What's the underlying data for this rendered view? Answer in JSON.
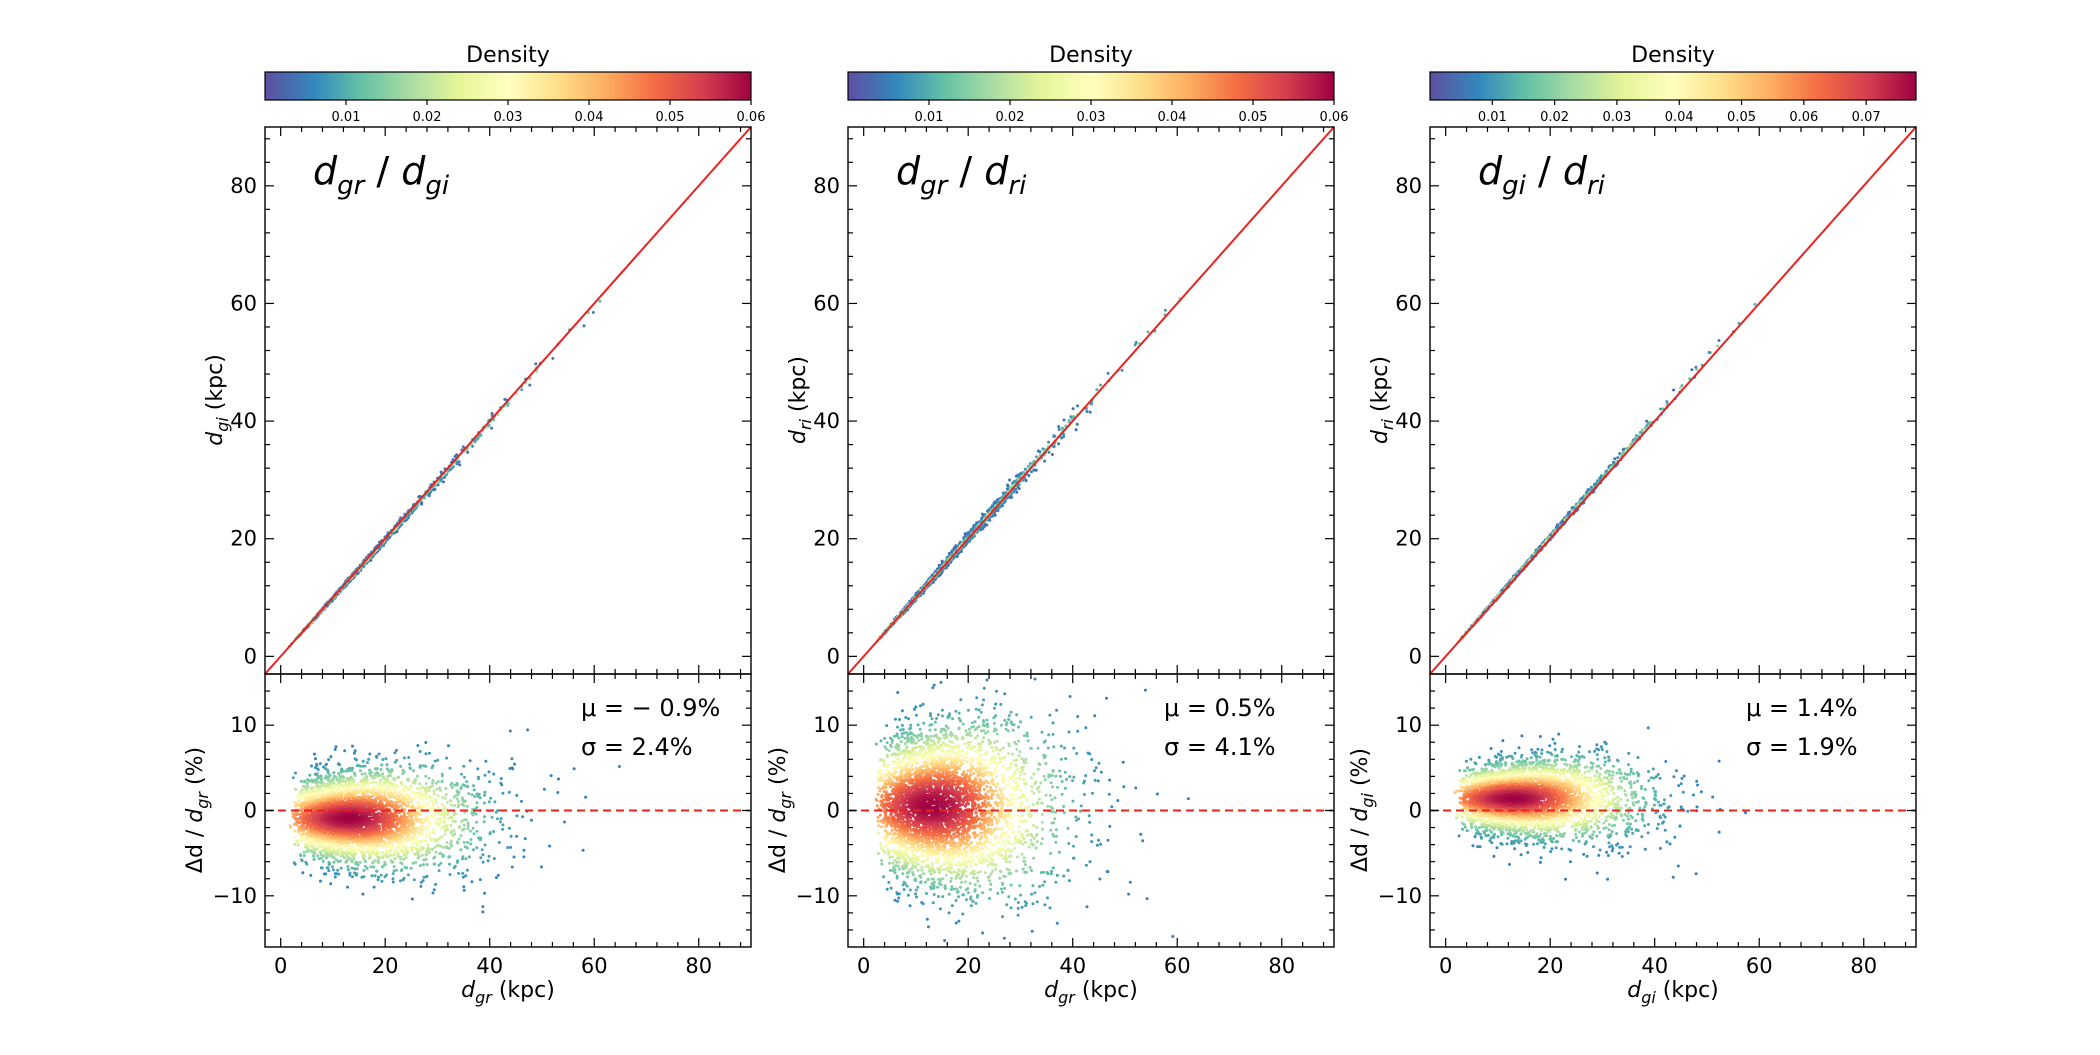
{
  "chart_data": [
    {
      "type": "scatter",
      "panel": "top",
      "title_main": "d",
      "title_sub1": "gr",
      "title_sep": " / ",
      "title_main2": "d",
      "title_sub2": "gi",
      "xlabel_main": "d",
      "xlabel_sub": "gr",
      "xlabel_unit": " (kpc)",
      "ylabel_main": "d",
      "ylabel_sub": "gi",
      "ylabel_unit": " (kpc)",
      "xlim": [
        -3,
        90
      ],
      "ylim": [
        -3,
        90
      ],
      "yticks": [
        0,
        20,
        40,
        60,
        80
      ],
      "ytick_labels": [
        "0",
        "20",
        "40",
        "60",
        "80"
      ],
      "reference_line": "y = x",
      "point_count": 1800,
      "offset_percent": -0.9,
      "scatter_percent": 2.4,
      "colorbar": {
        "title": "Density",
        "range": [
          0.0,
          0.06
        ],
        "ticks": [
          0.01,
          0.02,
          0.03,
          0.04,
          0.05,
          0.06
        ],
        "tick_labels": [
          "0.01",
          "0.02",
          "0.03",
          "0.04",
          "0.05",
          "0.06"
        ]
      }
    },
    {
      "type": "scatter",
      "panel": "top",
      "title_main": "d",
      "title_sub1": "gr",
      "title_sep": " / ",
      "title_main2": "d",
      "title_sub2": "ri",
      "xlabel_main": "d",
      "xlabel_sub": "gr",
      "xlabel_unit": " (kpc)",
      "ylabel_main": "d",
      "ylabel_sub": "ri",
      "ylabel_unit": " (kpc)",
      "xlim": [
        -3,
        90
      ],
      "ylim": [
        -3,
        90
      ],
      "yticks": [
        0,
        20,
        40,
        60,
        80
      ],
      "ytick_labels": [
        "0",
        "20",
        "40",
        "60",
        "80"
      ],
      "reference_line": "y = x",
      "point_count": 1800,
      "offset_percent": 0.5,
      "scatter_percent": 4.1,
      "colorbar": {
        "title": "Density",
        "range": [
          0.0,
          0.06
        ],
        "ticks": [
          0.01,
          0.02,
          0.03,
          0.04,
          0.05,
          0.06
        ],
        "tick_labels": [
          "0.01",
          "0.02",
          "0.03",
          "0.04",
          "0.05",
          "0.06"
        ]
      }
    },
    {
      "type": "scatter",
      "panel": "top",
      "title_main": "d",
      "title_sub1": "gi",
      "title_sep": " / ",
      "title_main2": "d",
      "title_sub2": "ri",
      "xlabel_main": "d",
      "xlabel_sub": "gi",
      "xlabel_unit": " (kpc)",
      "ylabel_main": "d",
      "ylabel_sub": "ri",
      "ylabel_unit": " (kpc)",
      "xlim": [
        -3,
        90
      ],
      "ylim": [
        -3,
        90
      ],
      "yticks": [
        0,
        20,
        40,
        60,
        80
      ],
      "ytick_labels": [
        "0",
        "20",
        "40",
        "60",
        "80"
      ],
      "reference_line": "y = x",
      "point_count": 1800,
      "offset_percent": 1.4,
      "scatter_percent": 1.9,
      "colorbar": {
        "title": "Density",
        "range": [
          0.0,
          0.078
        ],
        "ticks": [
          0.01,
          0.02,
          0.03,
          0.04,
          0.05,
          0.06,
          0.07
        ],
        "tick_labels": [
          "0.01",
          "0.02",
          "0.03",
          "0.04",
          "0.05",
          "0.06",
          "0.07"
        ]
      }
    },
    {
      "type": "scatter",
      "panel": "bottom",
      "ylabel_prefix": "Δd / ",
      "ylabel_main": "d",
      "ylabel_sub": "gr",
      "ylabel_unit": " (%)",
      "xlabel_main": "d",
      "xlabel_sub": "gr",
      "xlabel_unit": " (kpc)",
      "xlim": [
        -3,
        90
      ],
      "ylim": [
        -16,
        16
      ],
      "xticks": [
        0,
        20,
        40,
        60,
        80
      ],
      "xtick_labels": [
        "0",
        "20",
        "40",
        "60",
        "80"
      ],
      "yticks": [
        -10,
        0,
        10
      ],
      "ytick_labels": [
        "−10",
        "0",
        "10"
      ],
      "reference_line": "y = 0",
      "point_count": 4200,
      "mu_label": "μ = − 0.9%",
      "sigma_label": "σ = 2.4%",
      "mean_percent": -0.9,
      "std_percent": 2.4
    },
    {
      "type": "scatter",
      "panel": "bottom",
      "ylabel_prefix": "Δd / ",
      "ylabel_main": "d",
      "ylabel_sub": "gr",
      "ylabel_unit": " (%)",
      "xlabel_main": "d",
      "xlabel_sub": "gr",
      "xlabel_unit": " (kpc)",
      "xlim": [
        -3,
        90
      ],
      "ylim": [
        -16,
        16
      ],
      "xticks": [
        0,
        20,
        40,
        60,
        80
      ],
      "xtick_labels": [
        "0",
        "20",
        "40",
        "60",
        "80"
      ],
      "yticks": [
        -10,
        0,
        10
      ],
      "ytick_labels": [
        "−10",
        "0",
        "10"
      ],
      "reference_line": "y = 0",
      "point_count": 4200,
      "mu_label": "μ = 0.5%",
      "sigma_label": "σ = 4.1%",
      "mean_percent": 0.5,
      "std_percent": 4.1
    },
    {
      "type": "scatter",
      "panel": "bottom",
      "ylabel_prefix": "Δd / ",
      "ylabel_main": "d",
      "ylabel_sub": "gi",
      "ylabel_unit": " (%)",
      "xlabel_main": "d",
      "xlabel_sub": "gi",
      "xlabel_unit": " (kpc)",
      "xlim": [
        -3,
        90
      ],
      "ylim": [
        -16,
        16
      ],
      "xticks": [
        0,
        20,
        40,
        60,
        80
      ],
      "xtick_labels": [
        "0",
        "20",
        "40",
        "60",
        "80"
      ],
      "yticks": [
        -10,
        0,
        10
      ],
      "ytick_labels": [
        "−10",
        "0",
        "10"
      ],
      "reference_line": "y = 0",
      "point_count": 4200,
      "mu_label": "μ = 1.4%",
      "sigma_label": "σ = 1.9%",
      "mean_percent": 1.4,
      "std_percent": 1.9
    }
  ],
  "colors": {
    "reference_line": "#e8231f",
    "spectral_r": [
      "#5e4fa2",
      "#3288bd",
      "#66c2a5",
      "#abdda4",
      "#e6f598",
      "#ffffbf",
      "#fee08b",
      "#fdae61",
      "#f46d43",
      "#d53e4f",
      "#9e0142"
    ]
  }
}
